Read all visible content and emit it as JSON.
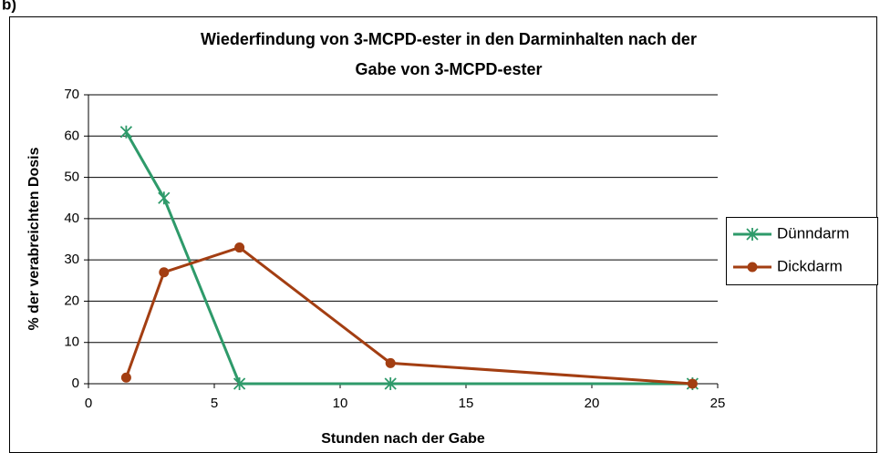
{
  "label": "b)",
  "chart_data": {
    "type": "line",
    "title": [
      "Wiederfindung von 3-MCPD-ester in den Darminhalten nach der",
      "Gabe von 3-MCPD-ester"
    ],
    "x_label": "Stunden nach der Gabe",
    "y_label": "% der verabreichten Dosis",
    "xlim": [
      0,
      25
    ],
    "xticks": [
      0,
      5,
      10,
      15,
      20,
      25
    ],
    "ylim": [
      0,
      70
    ],
    "yticks": [
      0,
      10,
      20,
      30,
      40,
      50,
      60,
      70
    ],
    "grid": true,
    "legend": "right",
    "series": [
      {
        "name": "Dünndarm",
        "color": "#2e9a6a",
        "marker": "star",
        "x": [
          1.5,
          3,
          6,
          12,
          24
        ],
        "values": [
          61,
          45,
          0,
          0,
          0
        ]
      },
      {
        "name": "Dickdarm",
        "color": "#a33e12",
        "marker": "circle",
        "x": [
          1.5,
          3,
          6,
          12,
          24
        ],
        "values": [
          1.5,
          27,
          33,
          5,
          0
        ]
      }
    ]
  }
}
